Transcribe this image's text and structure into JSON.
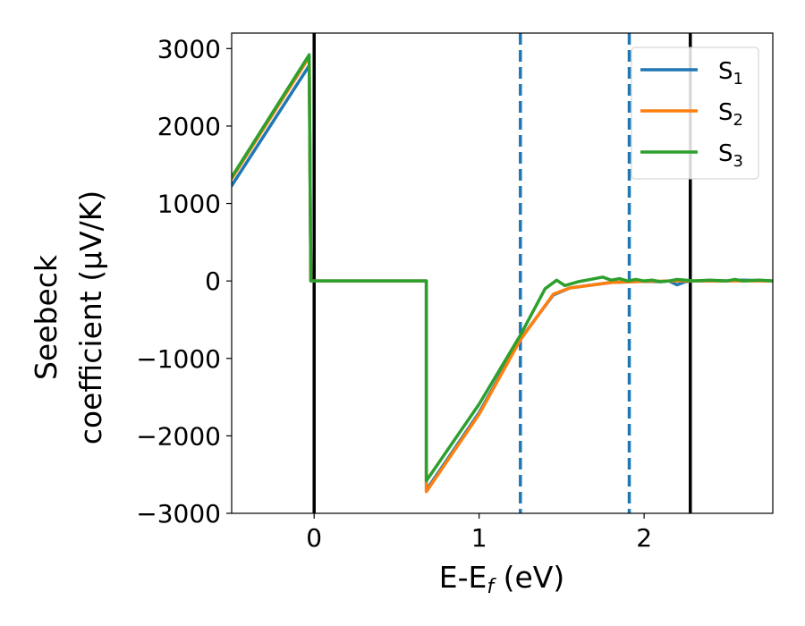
{
  "chart_data": {
    "type": "line",
    "title": "",
    "xlabel": "E-E",
    "xlabel_sub": "f",
    "xlabel_unit": " (eV)",
    "ylabel_line1": "Seebeck",
    "ylabel_line2": "coefficient  (μV/K)",
    "xlim": [
      -0.5,
      2.78
    ],
    "ylim": [
      -3000,
      3200
    ],
    "xticks": [
      0,
      1,
      2
    ],
    "xtick_labels": [
      "0",
      "1",
      "2"
    ],
    "yticks": [
      -3000,
      -2000,
      -1000,
      0,
      1000,
      2000,
      3000
    ],
    "ytick_labels": [
      "−3000",
      "−2000",
      "−1000",
      "0",
      "1000",
      "2000",
      "3000"
    ],
    "grid": false,
    "legend_position": "top-right",
    "vertical_lines": [
      {
        "x": 0.0,
        "style": "solid",
        "color": "#000000"
      },
      {
        "x": 1.25,
        "style": "dashed",
        "color": "#1f77b4"
      },
      {
        "x": 1.91,
        "style": "dashed",
        "color": "#1f77b4"
      },
      {
        "x": 2.28,
        "style": "solid",
        "color": "#000000"
      }
    ],
    "series": [
      {
        "name": "S",
        "sub": "1",
        "color": "#1f77b4",
        "x": [
          -0.5,
          -0.03,
          -0.02,
          0.68,
          0.68,
          1.0,
          1.25,
          1.45,
          1.55,
          1.8,
          2.0,
          2.1,
          2.15,
          2.2,
          2.25,
          2.3,
          2.5,
          2.6,
          2.78
        ],
        "y": [
          1230,
          2780,
          0,
          0,
          -2700,
          -1700,
          -750,
          -180,
          -90,
          -20,
          -5,
          -10,
          0,
          -50,
          -10,
          0,
          0,
          10,
          0
        ]
      },
      {
        "name": "S",
        "sub": "2",
        "color": "#ff7f0e",
        "x": [
          -0.5,
          -0.03,
          -0.02,
          0.68,
          0.68,
          1.0,
          1.25,
          1.45,
          1.55,
          1.8,
          2.0,
          2.2,
          2.5,
          2.78
        ],
        "y": [
          1320,
          2890,
          0,
          0,
          -2720,
          -1720,
          -760,
          -170,
          -90,
          -20,
          -5,
          0,
          0,
          0
        ]
      },
      {
        "name": "S",
        "sub": "3",
        "color": "#2ca02c",
        "x": [
          -0.5,
          -0.03,
          -0.02,
          0.68,
          0.68,
          1.0,
          1.25,
          1.4,
          1.47,
          1.52,
          1.6,
          1.65,
          1.7,
          1.75,
          1.8,
          1.85,
          1.9,
          1.95,
          2.0,
          2.05,
          2.1,
          2.15,
          2.2,
          2.3,
          2.4,
          2.5,
          2.55,
          2.6,
          2.7,
          2.78
        ],
        "y": [
          1340,
          2920,
          0,
          0,
          -2580,
          -1590,
          -700,
          -100,
          10,
          -60,
          -10,
          10,
          30,
          50,
          10,
          30,
          0,
          20,
          0,
          10,
          -10,
          0,
          20,
          0,
          10,
          0,
          20,
          0,
          10,
          0
        ]
      }
    ]
  }
}
